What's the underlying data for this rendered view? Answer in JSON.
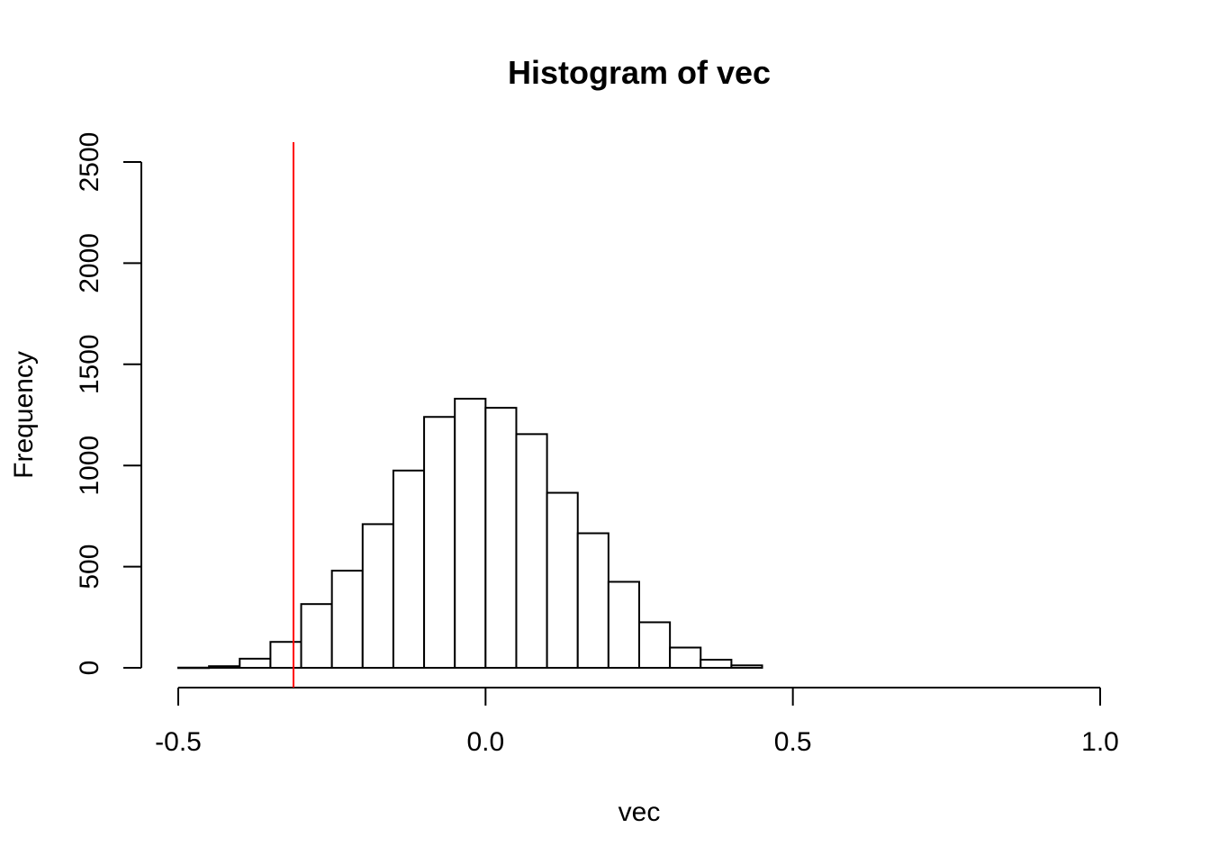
{
  "chart_data": {
    "type": "bar",
    "title": "Histogram of vec",
    "xlabel": "vec",
    "ylabel": "Frequency",
    "xlim": [
      -0.5,
      1.0
    ],
    "ylim": [
      0,
      2500
    ],
    "x_ticks": [
      -0.5,
      0.0,
      0.5,
      1.0
    ],
    "x_tick_labels": [
      "-0.5",
      "0.0",
      "0.5",
      "1.0"
    ],
    "y_ticks": [
      0,
      500,
      1000,
      1500,
      2000,
      2500
    ],
    "y_tick_labels": [
      "0",
      "500",
      "1000",
      "1500",
      "2000",
      "2500"
    ],
    "bins": [
      {
        "x0": -0.5,
        "x1": -0.45,
        "count": 1
      },
      {
        "x0": -0.45,
        "x1": -0.4,
        "count": 8
      },
      {
        "x0": -0.4,
        "x1": -0.35,
        "count": 45
      },
      {
        "x0": -0.35,
        "x1": -0.3,
        "count": 128
      },
      {
        "x0": -0.3,
        "x1": -0.25,
        "count": 315
      },
      {
        "x0": -0.25,
        "x1": -0.2,
        "count": 480
      },
      {
        "x0": -0.2,
        "x1": -0.15,
        "count": 710
      },
      {
        "x0": -0.15,
        "x1": -0.1,
        "count": 975
      },
      {
        "x0": -0.1,
        "x1": -0.05,
        "count": 1240
      },
      {
        "x0": -0.05,
        "x1": 0.0,
        "count": 1330
      },
      {
        "x0": 0.0,
        "x1": 0.05,
        "count": 1285
      },
      {
        "x0": 0.05,
        "x1": 0.1,
        "count": 1155
      },
      {
        "x0": 0.1,
        "x1": 0.15,
        "count": 865
      },
      {
        "x0": 0.15,
        "x1": 0.2,
        "count": 665
      },
      {
        "x0": 0.2,
        "x1": 0.25,
        "count": 425
      },
      {
        "x0": 0.25,
        "x1": 0.3,
        "count": 225
      },
      {
        "x0": 0.3,
        "x1": 0.35,
        "count": 100
      },
      {
        "x0": 0.35,
        "x1": 0.4,
        "count": 40
      },
      {
        "x0": 0.4,
        "x1": 0.45,
        "count": 12
      }
    ],
    "reference_line": {
      "x": -0.3125,
      "color": "#ff0000"
    },
    "grid": false
  }
}
